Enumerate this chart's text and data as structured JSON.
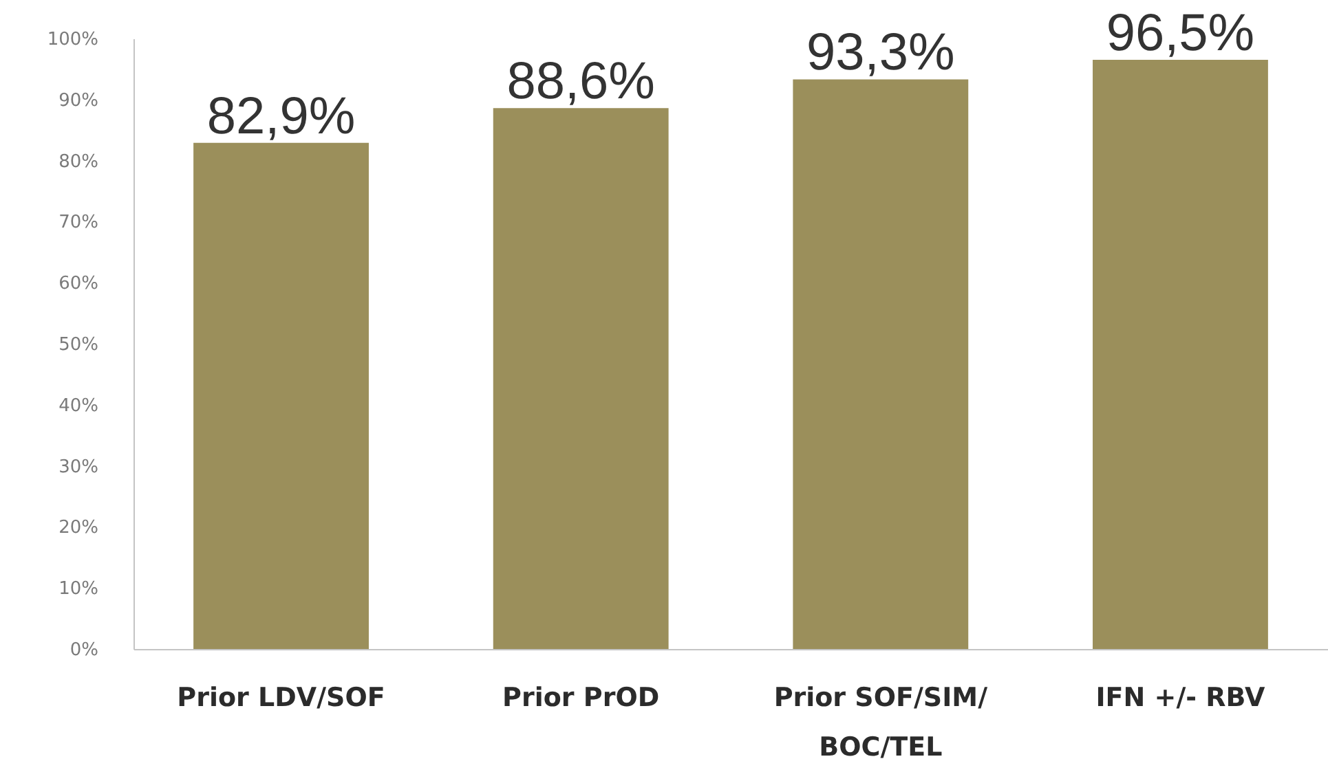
{
  "chart_data": {
    "type": "bar",
    "categories": [
      "Prior LDV/SOF",
      "Prior PrOD",
      "Prior SOF/SIM/BOC/TEL",
      "IFN +/- RBV"
    ],
    "values": [
      82.9,
      88.6,
      93.3,
      96.5
    ],
    "value_labels": [
      "82,9%",
      "88,6%",
      "93,3%",
      "96,5%"
    ],
    "color": "#9b8f5b",
    "ylim": [
      0,
      100
    ],
    "yticks": [
      {
        "value": 0,
        "label": "0%"
      },
      {
        "value": 10,
        "label": "10%"
      },
      {
        "value": 20,
        "label": "20%"
      },
      {
        "value": 30,
        "label": "30%"
      },
      {
        "value": 40,
        "label": "40%"
      },
      {
        "value": 50,
        "label": "50%"
      },
      {
        "value": 60,
        "label": "60%"
      },
      {
        "value": 70,
        "label": "70%"
      },
      {
        "value": 80,
        "label": "80%"
      },
      {
        "value": 90,
        "label": "90%"
      },
      {
        "value": 100,
        "label": "100%"
      }
    ]
  }
}
